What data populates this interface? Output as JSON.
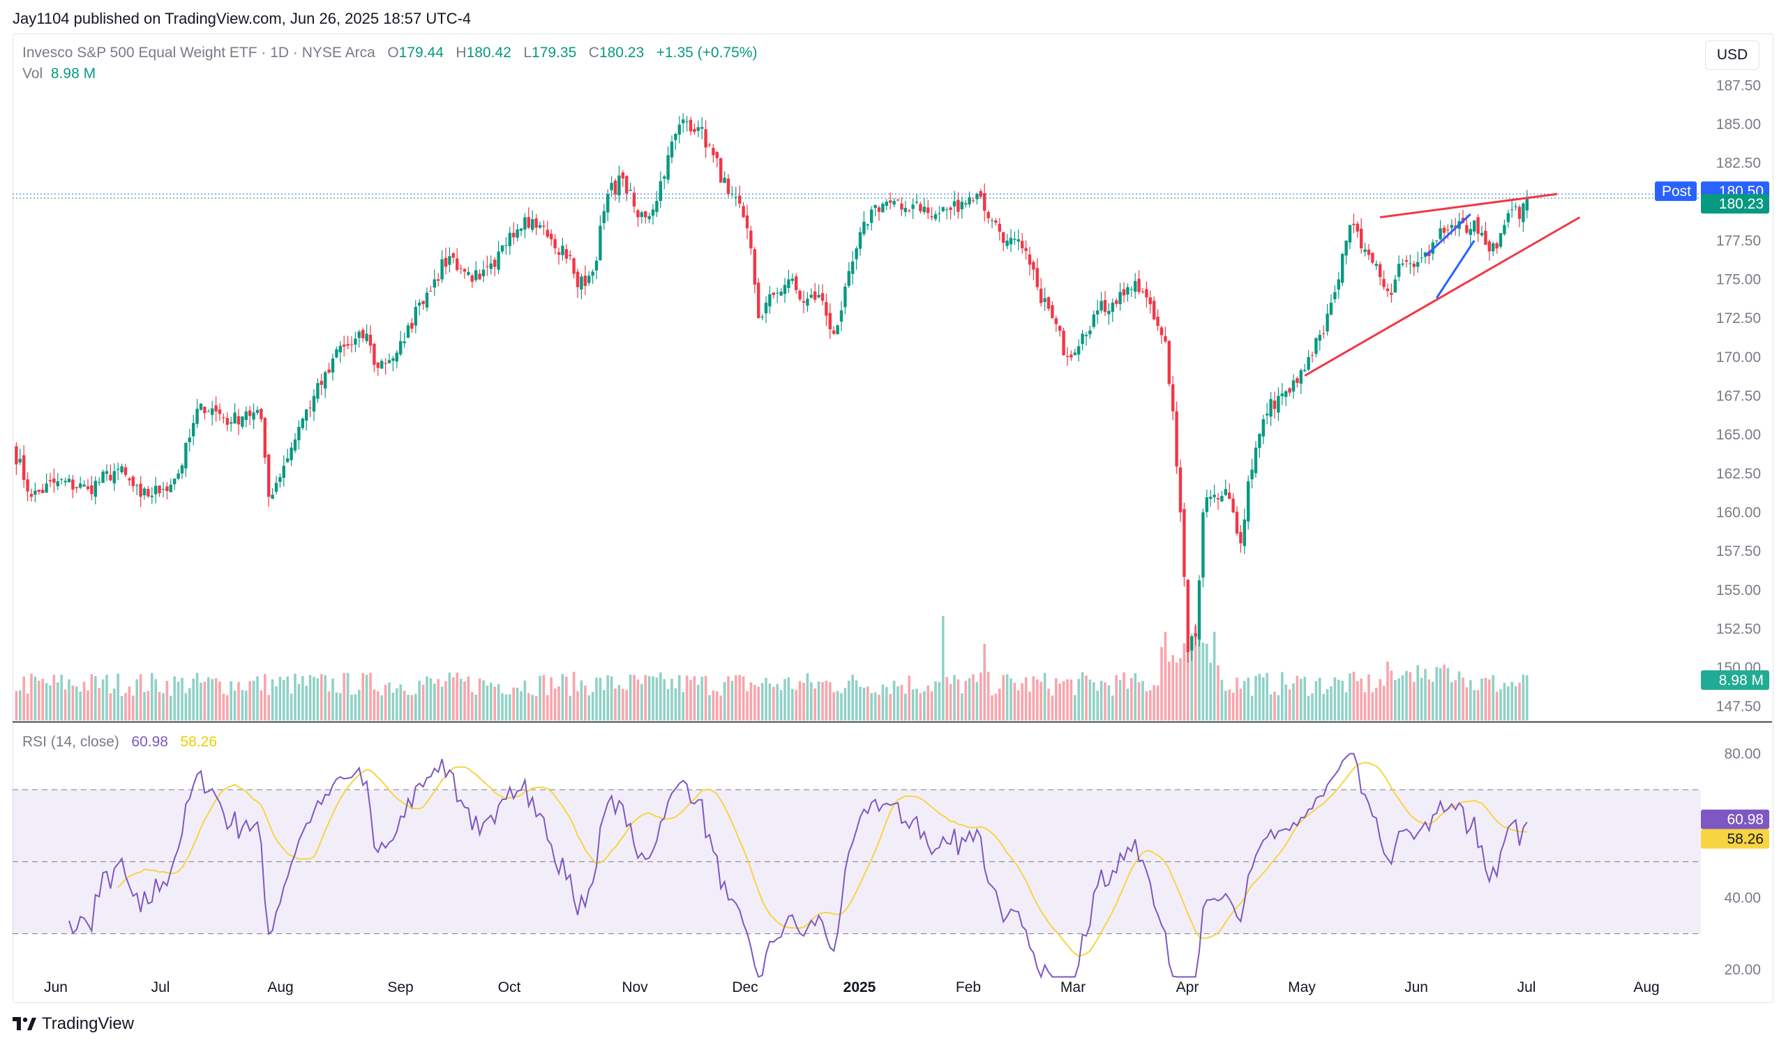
{
  "header": {
    "publisher_line": "Jay1104 published on TradingView.com, Jun 26, 2025 18:57 UTC-4"
  },
  "legend": {
    "symbol": "Invesco S&P 500 Equal Weight ETF · 1D · NYSE Arca",
    "o_label": "O",
    "o": "179.44",
    "h_label": "H",
    "h": "180.42",
    "l_label": "L",
    "l": "179.35",
    "c_label": "C",
    "c": "180.23",
    "change": "+1.35 (+0.75%)",
    "vol_label": "Vol",
    "vol": "8.98 M"
  },
  "rsi_legend": {
    "label": "RSI (14, close)",
    "rsi": "60.98",
    "ma": "58.26"
  },
  "currency_button": "USD",
  "footer": {
    "brand": "TradingView"
  },
  "colors": {
    "up": "#089981",
    "down": "#f23645",
    "rsi": "#7e57c2",
    "rsi_ma": "#f7d442",
    "trend_red": "#f23645",
    "trend_blue": "#2962ff"
  },
  "chart_data": [
    {
      "type": "candlestick",
      "title": "Invesco S&P 500 Equal Weight ETF · 1D · NYSE Arca",
      "price_axis_ticks": [
        "187.50",
        "185.00",
        "182.50",
        "180.00",
        "177.50",
        "175.00",
        "172.50",
        "170.00",
        "167.50",
        "165.00",
        "162.50",
        "160.00",
        "157.50",
        "155.00",
        "152.50",
        "150.00",
        "147.50"
      ],
      "time_axis_labels": [
        "Jun",
        "Jul",
        "Aug",
        "Sep",
        "Oct",
        "Nov",
        "Dec",
        "2025",
        "Feb",
        "Mar",
        "Apr",
        "May",
        "Jun",
        "Jul",
        "Aug"
      ],
      "price_badges": {
        "post_label": "Post",
        "post": "180.50",
        "last": "180.23",
        "volume": "8.98 M"
      },
      "ylim": [
        146.5,
        188.5
      ],
      "series": [
        {
          "name": "RSPE price path (approx. daily closes)",
          "anchors": [
            [
              0,
              164.3
            ],
            [
              5,
              161.0
            ],
            [
              12,
              162.0
            ],
            [
              20,
              161.5
            ],
            [
              28,
              162.8
            ],
            [
              34,
              161.0
            ],
            [
              40,
              161.5
            ],
            [
              44,
              162.5
            ],
            [
              50,
              167.0
            ],
            [
              54,
              166.5
            ],
            [
              58,
              165.8
            ],
            [
              62,
              166.5
            ],
            [
              66,
              166.0
            ],
            [
              68,
              161.0
            ],
            [
              72,
              163.0
            ],
            [
              76,
              165.5
            ],
            [
              80,
              167.5
            ],
            [
              84,
              169.0
            ],
            [
              86,
              170.5
            ],
            [
              90,
              170.8
            ],
            [
              94,
              171.5
            ],
            [
              96,
              169.5
            ],
            [
              100,
              169.8
            ],
            [
              104,
              171.0
            ],
            [
              108,
              173.5
            ],
            [
              112,
              175.0
            ],
            [
              116,
              176.5
            ],
            [
              120,
              175.5
            ],
            [
              124,
              175.0
            ],
            [
              128,
              175.8
            ],
            [
              132,
              178.0
            ],
            [
              136,
              179.0
            ],
            [
              140,
              178.5
            ],
            [
              144,
              177.0
            ],
            [
              148,
              176.5
            ],
            [
              150,
              174.5
            ],
            [
              154,
              175.5
            ],
            [
              158,
              180.5
            ],
            [
              162,
              181.5
            ],
            [
              166,
              179.0
            ],
            [
              170,
              179.5
            ],
            [
              174,
              183.0
            ],
            [
              178,
              185.3
            ],
            [
              182,
              184.8
            ],
            [
              186,
              183.0
            ],
            [
              190,
              180.5
            ],
            [
              194,
              179.0
            ],
            [
              196,
              177.0
            ],
            [
              198,
              172.5
            ],
            [
              202,
              174.0
            ],
            [
              206,
              175.0
            ],
            [
              210,
              173.5
            ],
            [
              214,
              174.0
            ],
            [
              218,
              171.5
            ],
            [
              220,
              173.0
            ],
            [
              224,
              177.0
            ],
            [
              228,
              179.5
            ],
            [
              232,
              180.0
            ],
            [
              236,
              179.5
            ],
            [
              240,
              180.0
            ],
            [
              244,
              179.0
            ],
            [
              248,
              179.5
            ],
            [
              252,
              180.0
            ],
            [
              256,
              180.5
            ],
            [
              260,
              178.8
            ],
            [
              264,
              177.5
            ],
            [
              268,
              177.0
            ],
            [
              272,
              174.5
            ],
            [
              276,
              172.5
            ],
            [
              280,
              170.0
            ],
            [
              284,
              171.5
            ],
            [
              288,
              173.0
            ],
            [
              292,
              173.5
            ],
            [
              296,
              174.5
            ],
            [
              300,
              174.2
            ],
            [
              304,
              172.0
            ],
            [
              306,
              171.0
            ],
            [
              308,
              166.5
            ],
            [
              310,
              160.0
            ],
            [
              312,
              151.0
            ],
            [
              314,
              152.0
            ],
            [
              316,
              160.0
            ],
            [
              318,
              161.0
            ],
            [
              322,
              161.5
            ],
            [
              324,
              160.0
            ],
            [
              326,
              158.0
            ],
            [
              328,
              162.0
            ],
            [
              332,
              166.0
            ],
            [
              336,
              167.5
            ],
            [
              340,
              168.5
            ],
            [
              344,
              170.0
            ],
            [
              348,
              171.5
            ],
            [
              350,
              173.5
            ],
            [
              352,
              175.0
            ],
            [
              354,
              177.5
            ],
            [
              356,
              178.5
            ],
            [
              358,
              177.0
            ],
            [
              362,
              176.0
            ],
            [
              364,
              174.5
            ],
            [
              366,
              174.0
            ],
            [
              368,
              176.0
            ],
            [
              372,
              175.8
            ],
            [
              376,
              176.5
            ],
            [
              378,
              177.5
            ],
            [
              380,
              178.0
            ],
            [
              382,
              178.5
            ],
            [
              386,
              178.0
            ],
            [
              388,
              178.8
            ],
            [
              390,
              178.0
            ],
            [
              392,
              176.8
            ],
            [
              394,
              177.0
            ],
            [
              396,
              178.5
            ],
            [
              398,
              179.5
            ],
            [
              400,
              178.9
            ],
            [
              402,
              180.23
            ]
          ]
        }
      ]
    },
    {
      "type": "bar",
      "title": "Volume",
      "last_value": "8.98 M",
      "note": "one bar per trading day, colored by candle direction; spikes near early Apr 2025 and mid Feb 2025"
    },
    {
      "type": "line",
      "title": "RSI (14, close)",
      "y_axis_ticks": [
        "80.00",
        "40.00",
        "20.00"
      ],
      "bands": [
        30,
        50,
        70
      ],
      "ylim": [
        15,
        83
      ],
      "last_values": {
        "rsi": 60.98,
        "rsi_ma": 58.26
      },
      "series": [
        {
          "name": "RSI",
          "derived_from": "price series"
        },
        {
          "name": "RSI-based MA",
          "derived_from": "RSI"
        }
      ]
    }
  ]
}
